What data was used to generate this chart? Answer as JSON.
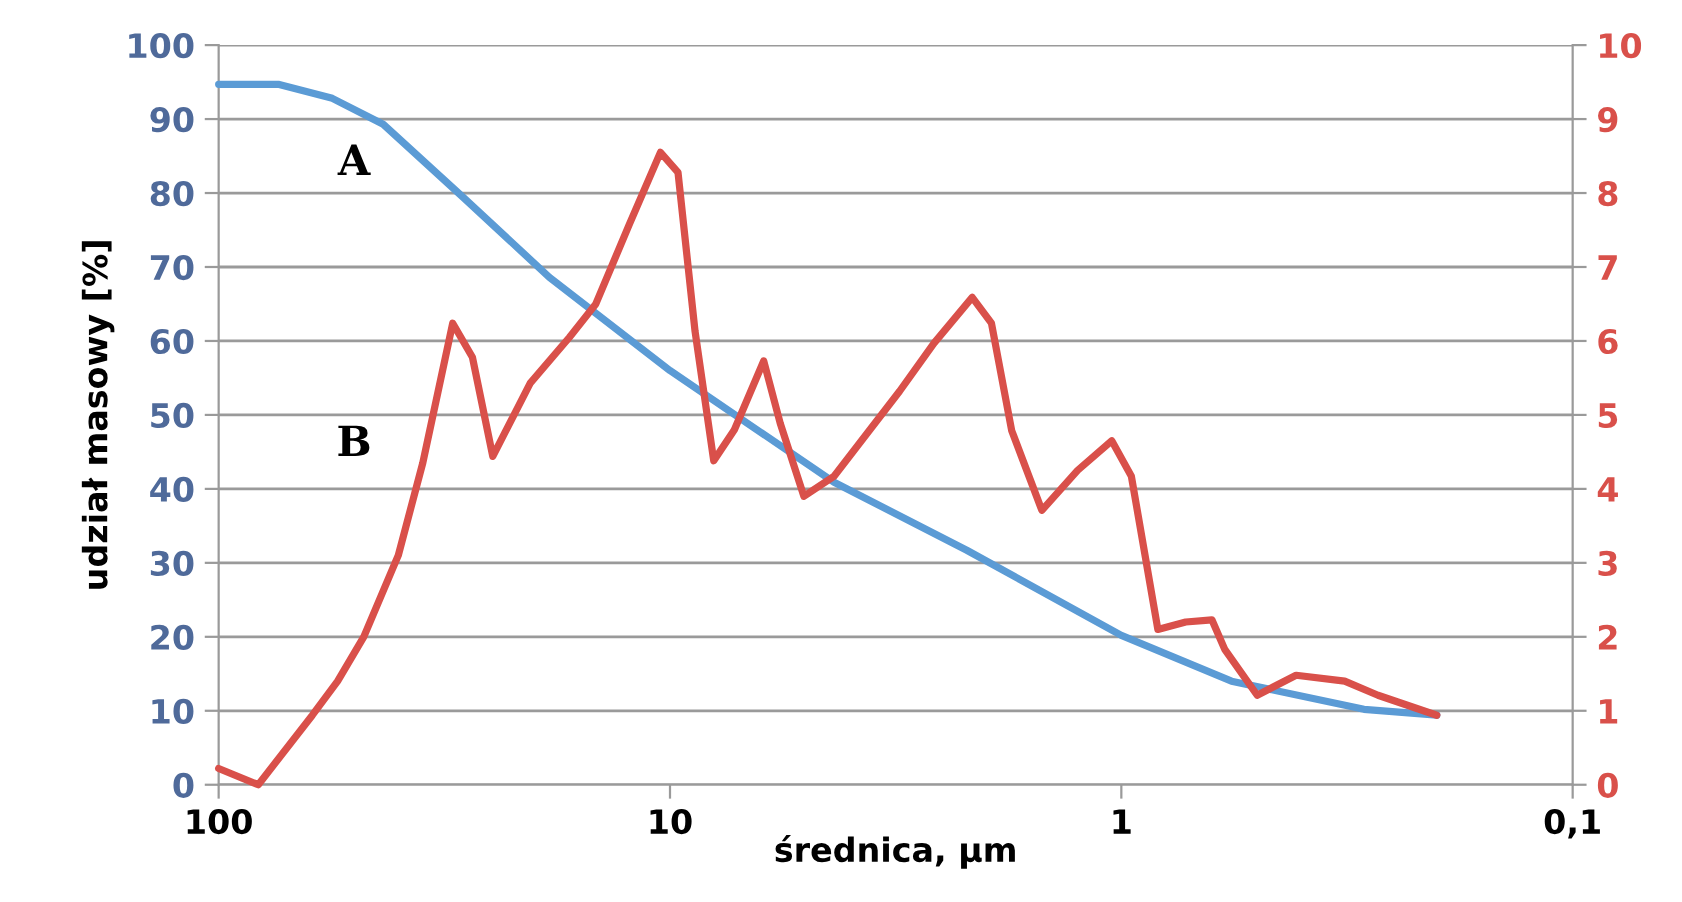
{
  "chart_data": {
    "type": "line",
    "xlabel": "średnica, µm",
    "ylabel": "udział masowy [%]",
    "log": "x",
    "xlim": [
      100,
      0.1
    ],
    "xticks": [
      100,
      10,
      1,
      {
        "value": 0.1,
        "label": "0,1"
      }
    ],
    "ylim": [
      0,
      100
    ],
    "yticks": [
      0,
      10,
      20,
      30,
      40,
      50,
      60,
      70,
      80,
      90,
      100
    ],
    "y2lim": [
      0,
      10
    ],
    "y2ticks": [
      0,
      1,
      2,
      3,
      4,
      5,
      6,
      7,
      8,
      9,
      10
    ],
    "grid": "y",
    "legend": false,
    "marker": "none",
    "line_style": "solid",
    "series": [
      {
        "color": "#5b9bd5",
        "x": [
          100,
          73.8,
          56,
          43.2,
          28.7,
          18.5,
          10,
          4.33,
          2.2,
          1,
          0.57,
          0.29,
          0.2
        ],
        "values": [
          94.7,
          94.7,
          92.8,
          89.3,
          79.4,
          68.6,
          56,
          40.9,
          31.7,
          20.2,
          14,
          10.2,
          9.4
        ]
      },
      {
        "color": "#d9504a",
        "axis": "y2",
        "x": [
          100,
          81.7,
          62,
          54.5,
          47.7,
          40,
          35.3,
          30.3,
          27.4,
          24.7,
          20.4,
          16.7,
          14.6,
          12.3,
          10.5,
          9.6,
          8.8,
          8.0,
          7.2,
          6.2,
          5.7,
          5.05,
          4.33,
          3.1,
          2.6,
          2.14,
          1.94,
          1.75,
          1.5,
          1.25,
          1.05,
          0.95,
          0.83,
          0.72,
          0.63,
          0.59,
          0.5,
          0.41,
          0.32,
          0.27,
          0.2
        ],
        "values": [
          0.22,
          0,
          0.94,
          1.4,
          2.0,
          3.1,
          4.35,
          6.24,
          5.78,
          4.44,
          5.43,
          6.05,
          6.5,
          7.58,
          8.55,
          8.28,
          6.13,
          4.38,
          4.8,
          5.73,
          4.89,
          3.9,
          4.17,
          5.32,
          5.97,
          6.59,
          6.24,
          4.79,
          3.71,
          4.25,
          4.65,
          4.17,
          2.1,
          2.2,
          2.23,
          1.83,
          1.21,
          1.48,
          1.4,
          1.21,
          0.94
        ]
      }
    ],
    "annotations": [
      "A",
      "B"
    ]
  }
}
